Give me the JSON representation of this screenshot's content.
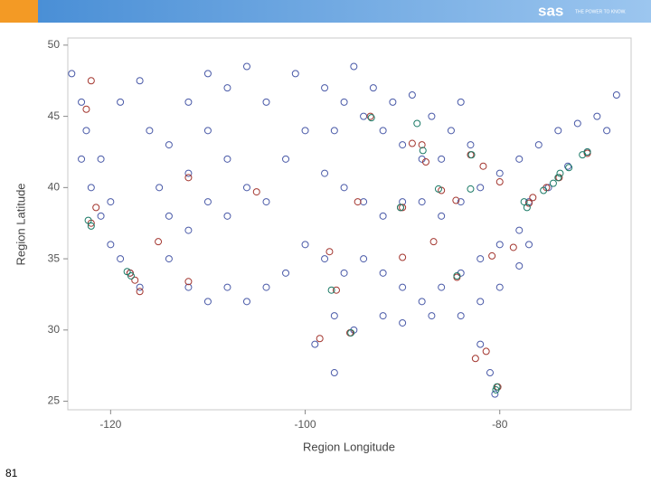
{
  "slide": {
    "logo": "sas",
    "tagline": "THE POWER TO KNOW.",
    "page_number": "81"
  },
  "chart_data": {
    "type": "scatter",
    "xlabel": "Region Longitude",
    "ylabel": "Region Latitude",
    "xlim": [
      -124.4,
      -66.5
    ],
    "ylim": [
      24.4,
      50.5
    ],
    "xticks": [
      -120,
      -100,
      -80
    ],
    "yticks": [
      25,
      30,
      35,
      40,
      45,
      50
    ],
    "series": [
      {
        "color": "#4a5aa8",
        "x": [
          -124,
          -123,
          -122.5,
          -123,
          -122,
          -121,
          -120,
          -118,
          -117,
          -119,
          -120,
          -121,
          -119,
          -117,
          -116,
          -114,
          -112,
          -110,
          -108,
          -106,
          -104,
          -101,
          -98,
          -96,
          -95,
          -93,
          -91,
          -89,
          -87,
          -85,
          -84,
          -83,
          -86,
          -88,
          -90,
          -92,
          -94,
          -97,
          -100,
          -102,
          -98,
          -96,
          -94,
          -92,
          -90,
          -88,
          -86,
          -84,
          -82,
          -80,
          -78,
          -76,
          -74,
          -72,
          -70,
          -68,
          -69,
          -71,
          -73,
          -75,
          -77,
          -78,
          -80,
          -82,
          -84,
          -86,
          -88,
          -90,
          -92,
          -94,
          -96,
          -98,
          -100,
          -102,
          -104,
          -106,
          -108,
          -110,
          -112,
          -114,
          -112,
          -110,
          -108,
          -106,
          -104,
          -108,
          -110,
          -112,
          -115,
          -114,
          -97,
          -99,
          -97,
          -95,
          -92,
          -90,
          -87,
          -84,
          -82,
          -81,
          -80.5,
          -82,
          -80,
          -78,
          -77
        ],
        "values": [
          48,
          46,
          44,
          42,
          40,
          38,
          36,
          34,
          33,
          35,
          39,
          42,
          46,
          47.5,
          44,
          43,
          46,
          48,
          47,
          48.5,
          46,
          48,
          47,
          46,
          48.5,
          47,
          46,
          46.5,
          45,
          44,
          46,
          43,
          42,
          42,
          43,
          44,
          45,
          44,
          44,
          42,
          41,
          40,
          39,
          38,
          39,
          39,
          38,
          39,
          40,
          41,
          42,
          43,
          44,
          44.5,
          45,
          46.5,
          44,
          42.5,
          41.5,
          40,
          39,
          37,
          36,
          35,
          34,
          33,
          32,
          33,
          34,
          35,
          34,
          35,
          36,
          34,
          33,
          32,
          33,
          32,
          33,
          35,
          37,
          39,
          38,
          40,
          39,
          42,
          44,
          41,
          40,
          38,
          31,
          29,
          27,
          30,
          31,
          30.5,
          31,
          31,
          29,
          27,
          25.5,
          32,
          33,
          34.5,
          36
        ]
      },
      {
        "color": "#a3362f",
        "x": [
          -122,
          -118,
          -117.5,
          -122.5,
          -122,
          -112,
          -105,
          -94.6,
          -90,
          -87.6,
          -88,
          -83,
          -84.5,
          -86,
          -81.7,
          -80,
          -77,
          -76.6,
          -75.2,
          -84.4,
          -86.8,
          -90,
          -95.4,
          -96.8,
          -98.5,
          -97.5,
          -93.3,
          -90.2,
          -80.8,
          -78.6,
          -82.5,
          -81.4,
          -80.2,
          -71,
          -73.9,
          -112,
          -115.1,
          -121.5,
          -117,
          -89
        ],
        "values": [
          37.5,
          34,
          33.5,
          45.5,
          47.5,
          40.7,
          39.7,
          39,
          38.6,
          41.8,
          43,
          42.3,
          39.1,
          39.8,
          41.5,
          40.4,
          38.9,
          39.3,
          40,
          33.7,
          36.2,
          35.1,
          29.8,
          32.8,
          29.4,
          35.5,
          45,
          38.6,
          35.2,
          35.8,
          28,
          28.5,
          26,
          42.4,
          40.7,
          33.4,
          36.2,
          38.6,
          32.7,
          43.1
        ]
      },
      {
        "color": "#1b7a66",
        "x": [
          -122.3,
          -122,
          -118.3,
          -117.9,
          -88.5,
          -87.9,
          -82.9,
          -93.2,
          -74,
          -74.5,
          -75.5,
          -71.5,
          -71,
          -77.5,
          -77.2,
          -97.3,
          -95.3,
          -84.4,
          -80.3,
          -80.4,
          -90.2,
          -83,
          -72.9,
          -86.3,
          -73.8
        ],
        "values": [
          37.7,
          37.3,
          34.1,
          33.8,
          44.5,
          42.6,
          42.3,
          44.9,
          40.7,
          40.3,
          39.8,
          42.3,
          42.5,
          39,
          38.6,
          32.8,
          29.8,
          33.8,
          26,
          25.8,
          38.6,
          39.9,
          41.4,
          39.9,
          41
        ]
      }
    ]
  }
}
